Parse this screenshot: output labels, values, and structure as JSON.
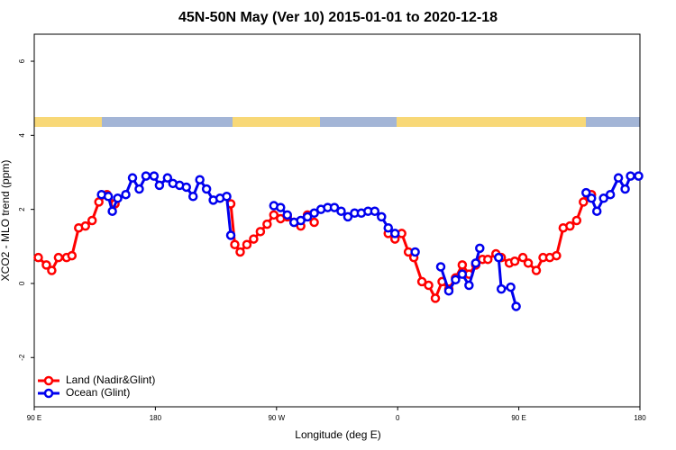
{
  "chart_data": {
    "type": "line",
    "title": "45N-50N May (Ver 10)   2015-01-01 to 2020-12-18",
    "x_label": "Longitude (deg E)",
    "y_label": "XCO2 - MLO trend (ppm)",
    "xlim": [
      90,
      540
    ],
    "xticks": [
      {
        "value": 90,
        "label": "90 E"
      },
      {
        "value": 180,
        "label": "180"
      },
      {
        "value": 270,
        "label": "90 W"
      },
      {
        "value": 360,
        "label": "0"
      },
      {
        "value": 450,
        "label": "90 E"
      },
      {
        "value": 540,
        "label": "180"
      }
    ],
    "ylim": [
      -3.33,
      6.73
    ],
    "yticks": [
      -2,
      0,
      2,
      4,
      6
    ],
    "legend": "bottom-left",
    "series": [
      {
        "name": "Land (Nadir&Glint)",
        "color": "#ff0000",
        "x": [
          93,
          99,
          103,
          108,
          114,
          118,
          123,
          128,
          133,
          138,
          144,
          150,
          null,
          236,
          239,
          243,
          248,
          253,
          258,
          263,
          268,
          273,
          278,
          283,
          288,
          293,
          298,
          null,
          353,
          358,
          363,
          368,
          372,
          378,
          383,
          388,
          393,
          398,
          403,
          408,
          413,
          418,
          423,
          427,
          433,
          437,
          443,
          447,
          453,
          457,
          463,
          468,
          473,
          478,
          483,
          488,
          493,
          498,
          501,
          504
        ],
        "values": [
          0.7,
          0.5,
          0.35,
          0.7,
          0.7,
          0.75,
          1.5,
          1.55,
          1.7,
          2.2,
          2.4,
          2.15,
          null,
          2.15,
          1.05,
          0.85,
          1.05,
          1.2,
          1.4,
          1.6,
          1.85,
          1.75,
          1.8,
          1.65,
          1.55,
          1.85,
          1.65,
          null,
          1.35,
          1.2,
          1.35,
          0.85,
          0.7,
          0.05,
          -0.05,
          -0.4,
          0.05,
          -0.15,
          0.15,
          0.5,
          0.25,
          0.5,
          0.65,
          0.65,
          0.8,
          0.7,
          0.55,
          0.6,
          0.7,
          0.55,
          0.35,
          0.7,
          0.7,
          0.75,
          1.5,
          1.55,
          1.7,
          2.2,
          2.4,
          2.4
        ]
      },
      {
        "name": "Ocean (Glint)",
        "color": "#0000ee",
        "x": [
          140,
          145,
          148,
          152,
          158,
          163,
          168,
          173,
          179,
          183,
          189,
          193,
          198,
          203,
          208,
          213,
          218,
          223,
          228,
          233,
          236,
          null,
          268,
          273,
          278,
          283,
          288,
          293,
          298,
          303,
          308,
          313,
          318,
          323,
          328,
          333,
          338,
          343,
          348,
          353,
          358,
          null,
          373,
          null,
          392,
          398,
          403,
          408,
          413,
          418,
          421,
          null,
          435,
          437,
          444,
          448,
          null,
          500,
          504,
          508,
          513,
          518,
          524,
          529,
          533,
          539
        ],
        "values": [
          2.4,
          2.35,
          1.95,
          2.3,
          2.4,
          2.85,
          2.55,
          2.9,
          2.9,
          2.65,
          2.85,
          2.7,
          2.65,
          2.6,
          2.35,
          2.8,
          2.55,
          2.25,
          2.3,
          2.35,
          1.3,
          null,
          2.1,
          2.05,
          1.85,
          1.65,
          1.7,
          1.8,
          1.9,
          2.0,
          2.05,
          2.05,
          1.95,
          1.8,
          1.9,
          1.9,
          1.95,
          1.95,
          1.8,
          1.5,
          1.35,
          null,
          0.85,
          null,
          0.45,
          -0.2,
          0.1,
          0.25,
          -0.05,
          0.55,
          0.95,
          null,
          0.7,
          -0.15,
          -0.1,
          -0.62,
          null,
          2.45,
          2.3,
          1.95,
          2.3,
          2.4,
          2.85,
          2.55,
          2.9,
          2.9
        ]
      }
    ]
  }
}
